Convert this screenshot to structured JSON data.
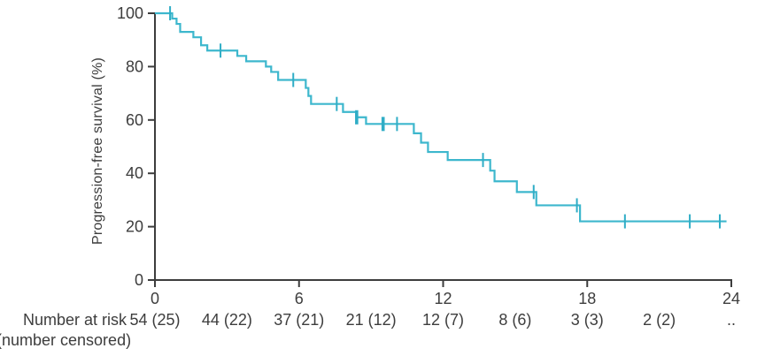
{
  "chart_data": {
    "type": "line",
    "subtype": "kaplan-meier-step",
    "title": "",
    "xlabel": "",
    "ylabel": "Progression-free survival (%)",
    "xlim": [
      0,
      24
    ],
    "ylim": [
      0,
      100
    ],
    "x_ticks": [
      "0",
      "6",
      "12",
      "18",
      "24"
    ],
    "x_tick_values": [
      0,
      6,
      12,
      18,
      24
    ],
    "y_ticks": [
      "0",
      "20",
      "40",
      "60",
      "80",
      "100"
    ],
    "y_tick_values": [
      0,
      20,
      40,
      60,
      80,
      100
    ],
    "grid": false,
    "legend": "none",
    "curve_end_time": 23.8,
    "steps": [
      [
        0,
        100
      ],
      [
        0.72,
        98
      ],
      [
        0.9,
        96
      ],
      [
        1.05,
        93
      ],
      [
        1.6,
        91
      ],
      [
        1.92,
        88
      ],
      [
        2.18,
        86
      ],
      [
        3.43,
        84
      ],
      [
        3.8,
        82
      ],
      [
        4.62,
        80
      ],
      [
        4.84,
        78
      ],
      [
        5.13,
        75
      ],
      [
        6.28,
        72
      ],
      [
        6.39,
        69
      ],
      [
        6.5,
        66
      ],
      [
        7.83,
        63
      ],
      [
        8.38,
        61
      ],
      [
        8.79,
        58.5
      ],
      [
        10.78,
        55
      ],
      [
        11.08,
        51.5
      ],
      [
        11.37,
        48
      ],
      [
        12.19,
        45
      ],
      [
        13.96,
        41
      ],
      [
        14.14,
        37
      ],
      [
        15.07,
        33
      ],
      [
        15.88,
        28
      ],
      [
        17.7,
        22
      ]
    ],
    "censor_marks": [
      {
        "t": 0.63,
        "p": 100,
        "thick": false
      },
      {
        "t": 2.73,
        "p": 86,
        "thick": false
      },
      {
        "t": 5.76,
        "p": 75,
        "thick": false
      },
      {
        "t": 7.57,
        "p": 66,
        "thick": false
      },
      {
        "t": 8.4,
        "p": 61,
        "thick": true
      },
      {
        "t": 9.5,
        "p": 58.5,
        "thick": true
      },
      {
        "t": 10.08,
        "p": 58.5,
        "thick": false
      },
      {
        "t": 13.66,
        "p": 45,
        "thick": false
      },
      {
        "t": 15.77,
        "p": 33,
        "thick": false
      },
      {
        "t": 17.57,
        "p": 28,
        "thick": false
      },
      {
        "t": 19.57,
        "p": 22,
        "thick": false
      },
      {
        "t": 22.27,
        "p": 22,
        "thick": false
      },
      {
        "t": 23.52,
        "p": 22,
        "thick": false
      }
    ],
    "risk_table": {
      "label_line1": "Number at risk",
      "label_line2": "(number censored)",
      "times": [
        0,
        3,
        6,
        9,
        12,
        15,
        18,
        21,
        24
      ],
      "values": [
        "54 (25)",
        "44 (22)",
        "37 (21)",
        "21 (12)",
        "12 (7)",
        "8 (6)",
        "3 (3)",
        "2 (2)",
        ".."
      ]
    },
    "colors": {
      "line": "#3db7cd",
      "censor": "#2fadc6",
      "axis": "#3d3d3d",
      "text": "#3d3d3d",
      "background": "#ffffff"
    }
  }
}
